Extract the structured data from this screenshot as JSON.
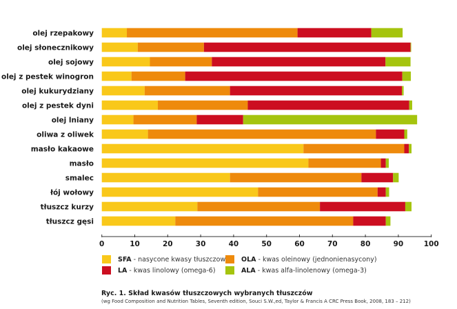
{
  "chart_data": {
    "type": "bar",
    "orientation": "horizontal",
    "stacked": true,
    "title": "Ryc. 1. Skład kwasów tłuszczowych wybranych tłuszczów",
    "subtitle": "(wg Food Composition and Nutrition Tables, Seventh edition, Souci S.W.,ed, Taylor & Francis A CRC Press Book, 2008, 183 – 212)",
    "xlabel": "",
    "ylabel": "",
    "xlim": [
      0,
      100
    ],
    "xticks": [
      "0",
      "10",
      "20",
      "30",
      "40",
      "50",
      "60",
      "70",
      "80",
      "90",
      "100"
    ],
    "grid": false,
    "legend_position": "bottom",
    "categories": [
      "olej rzepakowy",
      "olej słonecznikowy",
      "olej sojowy",
      "olej z pestek winogron",
      "olej kukurydziany",
      "olej z pestek dyni",
      "olej lniany",
      "oliwa z oliwek",
      "masło kakaowe",
      "masło",
      "smalec",
      "łój wołowy",
      "tłuszcz kurzy",
      "tłuszcz gęsi"
    ],
    "series": [
      {
        "name": "SFA",
        "description": "nasycone kwasy tłuszczowe",
        "color": "#F9C81A",
        "values": [
          7.6,
          10.9,
          14.6,
          9.0,
          13.0,
          17.0,
          9.6,
          14.0,
          61.2,
          62.7,
          38.9,
          47.4,
          29.0,
          22.3
        ]
      },
      {
        "name": "OLA",
        "description": "kwas oleinowy (jednonienasycony)",
        "color": "#EE8A0C",
        "values": [
          51.8,
          20.1,
          18.8,
          16.3,
          25.9,
          27.3,
          19.2,
          69.2,
          30.6,
          22.0,
          39.9,
          36.3,
          37.2,
          54.0
        ]
      },
      {
        "name": "LA",
        "description": "kwas linolowy (omega-6)",
        "color": "#CC0E20",
        "values": [
          22.4,
          62.7,
          52.7,
          65.9,
          52.2,
          49.0,
          14.1,
          8.6,
          1.4,
          1.5,
          9.6,
          2.5,
          25.9,
          9.9
        ]
      },
      {
        "name": "ALA",
        "description": "kwas alfa-linolenowy (omega-3)",
        "color": "#A5C40E",
        "values": [
          9.5,
          0.2,
          7.6,
          2.6,
          0.5,
          0.9,
          52.8,
          0.9,
          0.8,
          0.9,
          1.7,
          1.0,
          1.9,
          1.4
        ]
      }
    ]
  },
  "legend": {
    "items": [
      {
        "abbr": "SFA",
        "sep": " - ",
        "desc": "nasycone kwasy tłuszczowe",
        "color": "#F9C81A"
      },
      {
        "abbr": "OLA",
        "sep": " - ",
        "desc": "kwas oleinowy (jednonienasycony)",
        "color": "#EE8A0C"
      },
      {
        "abbr": "LA",
        "sep": " - ",
        "desc": "kwas linolowy (omega-6)",
        "color": "#CC0E20"
      },
      {
        "abbr": "ALA",
        "sep": " - ",
        "desc": "kwas alfa-linolenowy (omega-3)",
        "color": "#A5C40E"
      }
    ]
  },
  "caption": {
    "title": "Ryc. 1. Skład kwasów tłuszczowych wybranych tłuszczów",
    "source": "(wg Food Composition and Nutrition Tables, Seventh edition, Souci S.W.,ed, Taylor & Francis A CRC Press Book, 2008, 183 – 212)"
  }
}
